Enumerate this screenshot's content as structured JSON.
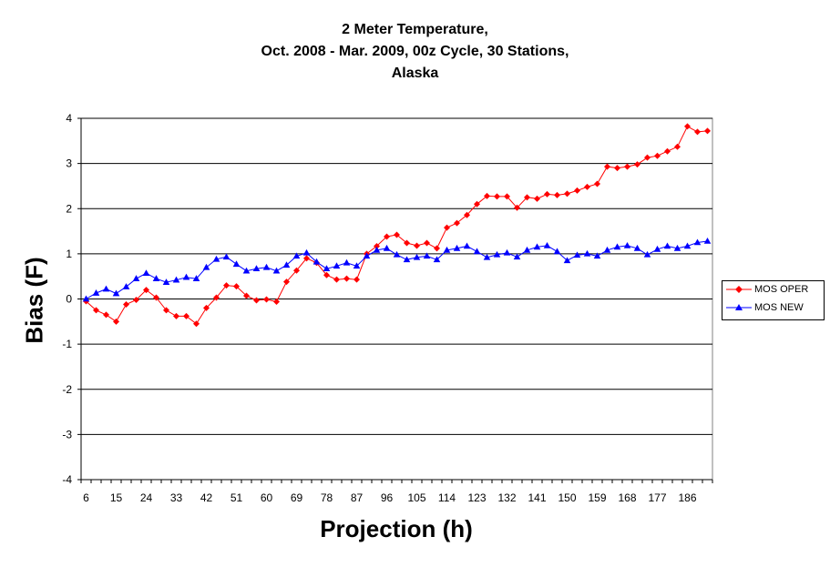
{
  "chart_data": {
    "type": "line",
    "title_lines": [
      "2 Meter Temperature,",
      "Oct. 2008 - Mar. 2009, 00z Cycle, 30 Stations,",
      "Alaska"
    ],
    "xlabel": "Projection (h)",
    "ylabel": "Bias (F)",
    "ylim": [
      -4,
      4
    ],
    "y_ticks": [
      4,
      3,
      2,
      1,
      0,
      -1,
      -2,
      -3,
      -4
    ],
    "x_ticks": [
      "6",
      "15",
      "24",
      "33",
      "42",
      "51",
      "60",
      "69",
      "78",
      "87",
      "96",
      "105",
      "114",
      "123",
      "132",
      "141",
      "150",
      "159",
      "168",
      "177",
      "186"
    ],
    "grid": "horizontal",
    "legend_position": "right",
    "x": [
      6,
      9,
      12,
      15,
      18,
      21,
      24,
      27,
      30,
      33,
      36,
      39,
      42,
      45,
      48,
      51,
      54,
      57,
      60,
      63,
      66,
      69,
      72,
      75,
      78,
      81,
      84,
      87,
      90,
      93,
      96,
      99,
      102,
      105,
      108,
      111,
      114,
      117,
      120,
      123,
      126,
      129,
      132,
      135,
      138,
      141,
      144,
      147,
      150,
      153,
      156,
      159,
      162,
      165,
      168,
      171,
      174,
      177,
      180,
      183,
      186,
      189,
      192
    ],
    "series": [
      {
        "name": "MOS OPER",
        "color": "#ff0000",
        "marker": "diamond",
        "values": [
          -0.05,
          -0.25,
          -0.35,
          -0.5,
          -0.12,
          -0.02,
          0.2,
          0.03,
          -0.25,
          -0.38,
          -0.38,
          -0.55,
          -0.2,
          0.03,
          0.3,
          0.28,
          0.07,
          -0.03,
          -0.01,
          -0.06,
          0.38,
          0.63,
          0.9,
          0.8,
          0.53,
          0.43,
          0.45,
          0.43,
          1.0,
          1.17,
          1.38,
          1.42,
          1.24,
          1.18,
          1.24,
          1.12,
          1.58,
          1.68,
          1.86,
          2.1,
          2.28,
          2.27,
          2.27,
          2.02,
          2.25,
          2.22,
          2.32,
          2.3,
          2.33,
          2.4,
          2.48,
          2.55,
          2.93,
          2.9,
          2.93,
          2.98,
          3.13,
          3.17,
          3.27,
          3.37,
          3.82,
          3.7,
          3.72
        ]
      },
      {
        "name": "MOS NEW",
        "color": "#0000ff",
        "marker": "triangle",
        "values": [
          0.0,
          0.13,
          0.22,
          0.12,
          0.27,
          0.45,
          0.57,
          0.45,
          0.37,
          0.42,
          0.48,
          0.45,
          0.7,
          0.88,
          0.93,
          0.77,
          0.62,
          0.67,
          0.7,
          0.62,
          0.75,
          0.95,
          1.02,
          0.82,
          0.67,
          0.73,
          0.8,
          0.73,
          0.95,
          1.08,
          1.12,
          0.98,
          0.87,
          0.92,
          0.95,
          0.87,
          1.08,
          1.12,
          1.17,
          1.05,
          0.92,
          0.98,
          1.02,
          0.93,
          1.08,
          1.15,
          1.18,
          1.05,
          0.85,
          0.97,
          1.0,
          0.95,
          1.08,
          1.15,
          1.18,
          1.12,
          0.98,
          1.1,
          1.17,
          1.12,
          1.17,
          1.25,
          1.28
        ]
      }
    ]
  }
}
